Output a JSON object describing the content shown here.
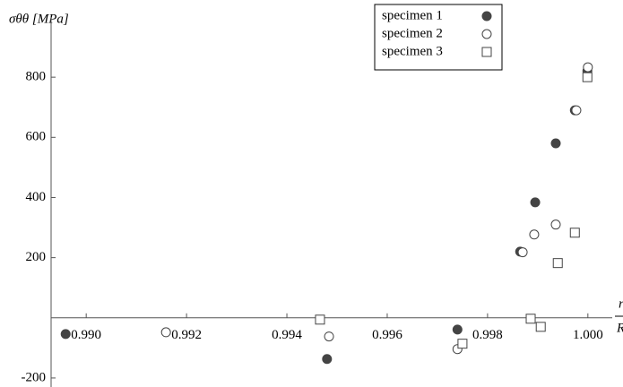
{
  "chart_data": {
    "type": "scatter",
    "ylabel": "σθθ [MPa]",
    "xlabel_numerator": "r",
    "xlabel_denominator": "R",
    "xlim": [
      0.9893,
      1.0007
    ],
    "ylim": [
      -230,
      1000
    ],
    "xticks": [
      {
        "value": 0.99,
        "label": "0.990"
      },
      {
        "value": 0.992,
        "label": "0.992"
      },
      {
        "value": 0.994,
        "label": "0.994"
      },
      {
        "value": 0.996,
        "label": "0.996"
      },
      {
        "value": 0.998,
        "label": "0.998"
      },
      {
        "value": 1.0,
        "label": "1.000"
      }
    ],
    "yticks": [
      -200,
      200,
      400,
      600,
      800
    ],
    "grid": false,
    "legend": "top-right",
    "series": [
      {
        "name": "specimen 1",
        "marker": "filled-circle",
        "color": "#444444",
        "x": [
          0.98959,
          0.9948,
          0.9974,
          0.99865,
          0.99895,
          0.99936,
          0.99974,
          0.99999
        ],
        "values": [
          -54,
          -137,
          -39,
          220,
          384,
          580,
          690,
          821
        ]
      },
      {
        "name": "specimen 2",
        "marker": "open-circle",
        "color": "#444444",
        "x": [
          0.99159,
          0.99484,
          0.9974,
          0.9987,
          0.99893,
          0.99936,
          0.99977,
          1.0
        ],
        "values": [
          -48,
          -62,
          -104,
          218,
          277,
          310,
          690,
          833
        ]
      },
      {
        "name": "specimen 3",
        "marker": "open-square",
        "color": "#444444",
        "x": [
          0.99466,
          0.9975,
          0.99886,
          0.99906,
          0.9994,
          0.99974,
          0.99999
        ],
        "values": [
          -6,
          -86,
          -3,
          -30,
          182,
          283,
          800
        ]
      }
    ]
  }
}
